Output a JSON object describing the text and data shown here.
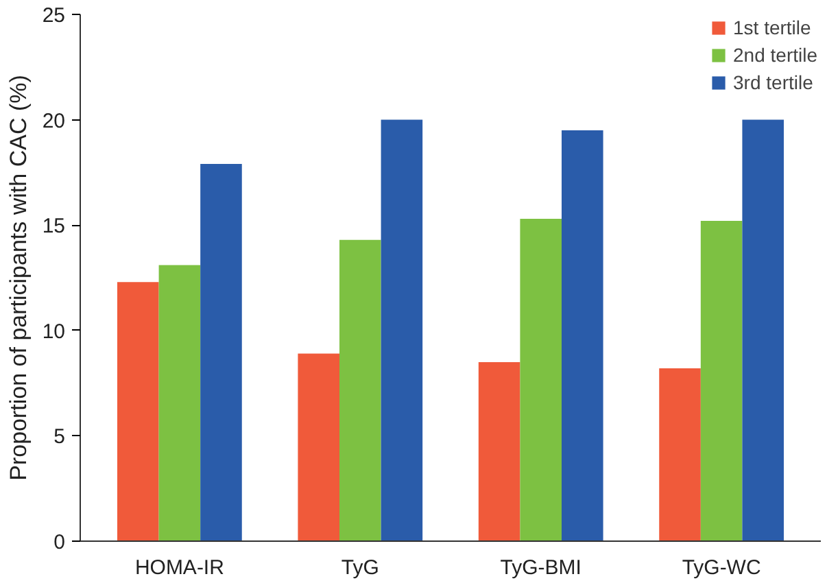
{
  "chart_data": {
    "type": "bar",
    "ylabel": "Proportion of participants with CAC (%)",
    "categories": [
      "HOMA-IR",
      "TyG",
      "TyG-BMI",
      "TyG-WC"
    ],
    "series": [
      {
        "name": "1st tertile",
        "color": "#f05a3a",
        "values": [
          12.3,
          8.9,
          8.5,
          8.2
        ]
      },
      {
        "name": "2nd tertile",
        "color": "#7dc142",
        "values": [
          13.1,
          14.3,
          15.3,
          15.2
        ]
      },
      {
        "name": "3rd tertile",
        "color": "#2a5caa",
        "values": [
          17.9,
          20.0,
          19.5,
          20.0
        ]
      }
    ],
    "ylim": [
      0,
      25
    ],
    "yticks": [
      0,
      5,
      10,
      15,
      20,
      25
    ],
    "grid": false,
    "legend": "top right"
  }
}
